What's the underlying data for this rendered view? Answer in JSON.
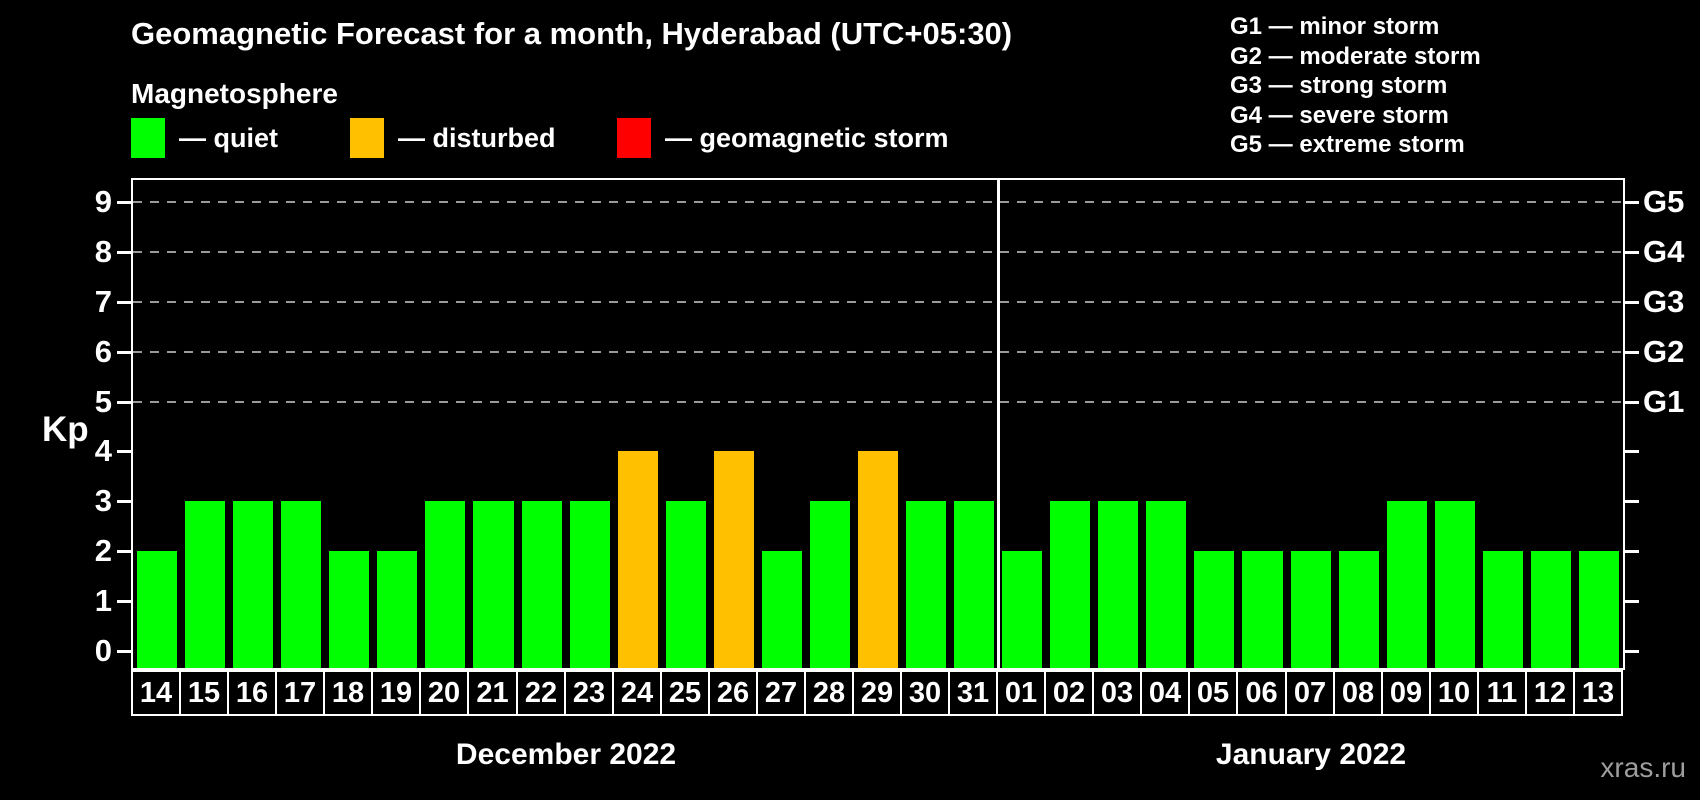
{
  "title": "Geomagnetic Forecast for a month, Hyderabad (UTC+05:30)",
  "subtitle": "Magnetosphere",
  "status_legend": [
    {
      "label": "— quiet",
      "status": "quiet"
    },
    {
      "label": "— disturbed",
      "status": "disturbed"
    },
    {
      "label": "— geomagnetic storm",
      "status": "storm"
    }
  ],
  "g_scale_legend": [
    "G1 — minor storm",
    "G2 — moderate storm",
    "G3 — strong storm",
    "G4 — severe storm",
    "G5 — extreme storm"
  ],
  "watermark": "xras.ru",
  "chart_data": {
    "type": "bar",
    "title": "Geomagnetic Forecast for a month, Hyderabad (UTC+05:30)",
    "ylabel": "Kp",
    "ylim": [
      0,
      9
    ],
    "yticks": [
      0,
      1,
      2,
      3,
      4,
      5,
      6,
      7,
      8,
      9
    ],
    "gridlines_at_kp": [
      5,
      6,
      7,
      8,
      9
    ],
    "grid_style": "dashed horizontal gray lines at storm levels only",
    "right_axis": {
      "labels": [
        "G1",
        "G2",
        "G3",
        "G4",
        "G5"
      ],
      "at_kp": [
        5,
        6,
        7,
        8,
        9
      ]
    },
    "colors": {
      "quiet": "#00ff00",
      "disturbed": "#ffc000",
      "storm": "#ff0000",
      "axis": "#ffffff",
      "grid": "#9a9a9a",
      "background": "#000000"
    },
    "legend_position": "top-left (status colors) and top-right (G scale)",
    "sections": [
      {
        "month_label": "December 2022",
        "days": [
          "14",
          "15",
          "16",
          "17",
          "18",
          "19",
          "20",
          "21",
          "22",
          "23",
          "24",
          "25",
          "26",
          "27",
          "28",
          "29",
          "30",
          "31"
        ],
        "values": [
          2,
          3,
          3,
          3,
          2,
          2,
          3,
          3,
          3,
          3,
          4,
          3,
          4,
          2,
          3,
          4,
          3,
          3
        ],
        "statuses": [
          "quiet",
          "quiet",
          "quiet",
          "quiet",
          "quiet",
          "quiet",
          "quiet",
          "quiet",
          "quiet",
          "quiet",
          "disturbed",
          "quiet",
          "disturbed",
          "quiet",
          "quiet",
          "disturbed",
          "quiet",
          "quiet"
        ]
      },
      {
        "month_label": "January 2022",
        "days": [
          "01",
          "02",
          "03",
          "04",
          "05",
          "06",
          "07",
          "08",
          "09",
          "10",
          "11",
          "12",
          "13"
        ],
        "values": [
          2,
          3,
          3,
          3,
          2,
          2,
          2,
          2,
          3,
          3,
          2,
          2,
          2
        ],
        "statuses": [
          "quiet",
          "quiet",
          "quiet",
          "quiet",
          "quiet",
          "quiet",
          "quiet",
          "quiet",
          "quiet",
          "quiet",
          "quiet",
          "quiet",
          "quiet"
        ]
      }
    ]
  }
}
